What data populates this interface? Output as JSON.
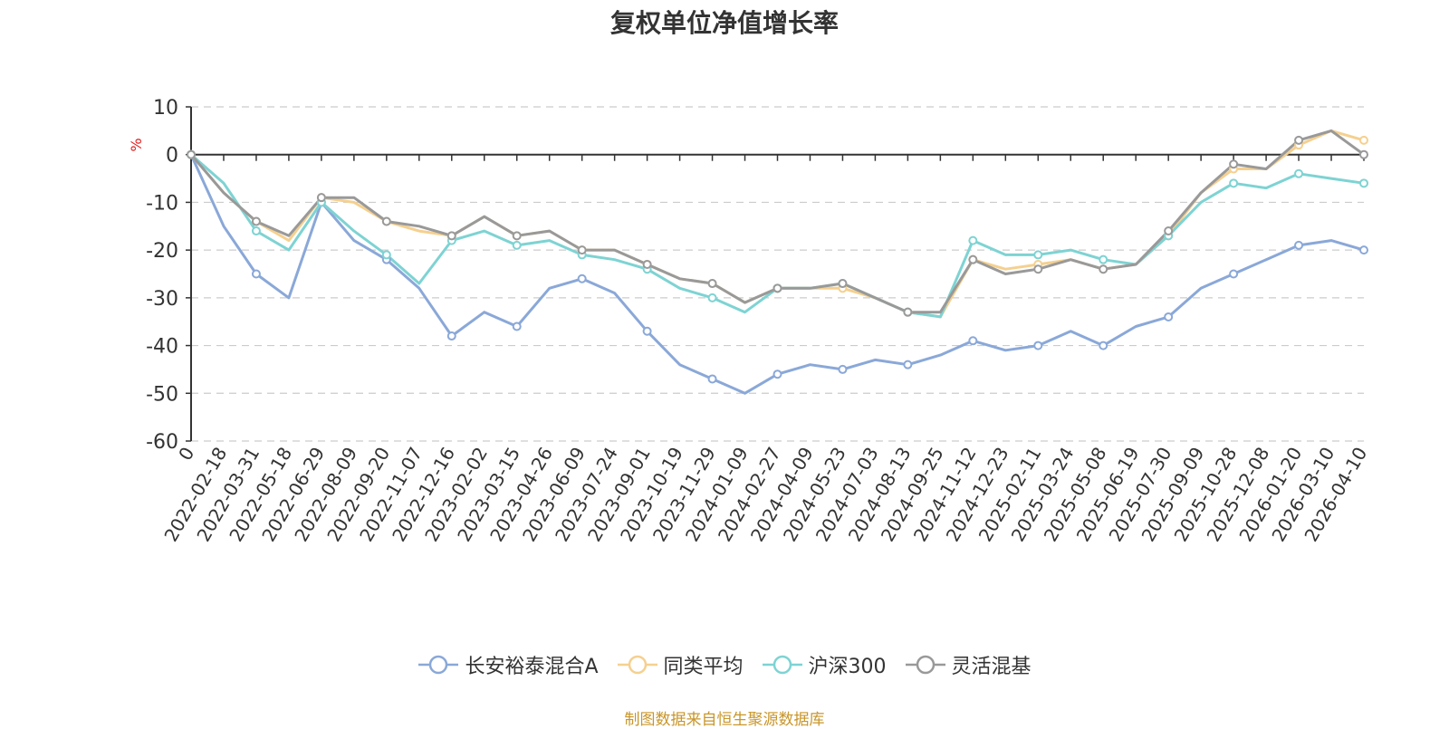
{
  "chart_data": {
    "type": "line",
    "title": "复权单位净值增长率",
    "ylabel": "%",
    "ylim": [
      -60,
      10
    ],
    "yticks": [
      "10",
      "0",
      "-10",
      "-20",
      "-30",
      "-40",
      "-50",
      "-60"
    ],
    "grid": true,
    "legend_position": "bottom-center",
    "x": [
      "0",
      "2022-02-18",
      "2022-03-31",
      "2022-05-18",
      "2022-06-29",
      "2022-08-09",
      "2022-09-20",
      "2022-11-07",
      "2022-12-16",
      "2023-02-02",
      "2023-03-15",
      "2023-04-26",
      "2023-06-09",
      "2023-07-24",
      "2023-09-01",
      "2023-10-19",
      "2023-11-29",
      "2024-01-09",
      "2024-02-27",
      "2024-04-09",
      "2024-05-23",
      "2024-07-03",
      "2024-08-13",
      "2024-09-25",
      "2024-11-12",
      "2024-12-23",
      "2025-02-11",
      "2025-03-24",
      "2025-05-08",
      "2025-06-19",
      "2025-07-30",
      "2025-09-09",
      "2025-10-28",
      "2025-12-08",
      "2026-01-20",
      "2026-03-10",
      "2026-04-10"
    ],
    "series": [
      {
        "name": "长安裕泰混合A",
        "color": "#8aa8d8",
        "values": [
          0,
          -15,
          -25,
          -30,
          -10,
          -18,
          -22,
          -28,
          -38,
          -33,
          -36,
          -28,
          -26,
          -29,
          -37,
          -44,
          -47,
          -50,
          -46,
          -44,
          -45,
          -43,
          -44,
          -42,
          -39,
          -41,
          -40,
          -37,
          -40,
          -36,
          -34,
          -28,
          -25,
          -22,
          -19,
          -18,
          -20
        ]
      },
      {
        "name": "同类平均",
        "color": "#f5d08f",
        "values": [
          0,
          -8,
          -14,
          -18,
          -9,
          -10,
          -14,
          -16,
          -17,
          -13,
          -17,
          -16,
          -20,
          -20,
          -23,
          -26,
          -27,
          -31,
          -28,
          -28,
          -28,
          -30,
          -33,
          -34,
          -22,
          -24,
          -23,
          -22,
          -24,
          -23,
          -17,
          -8,
          -3,
          -3,
          2,
          5,
          3
        ]
      },
      {
        "name": "沪深300",
        "color": "#7ed3d3",
        "values": [
          0,
          -6,
          -16,
          -20,
          -10,
          -16,
          -21,
          -27,
          -18,
          -16,
          -19,
          -18,
          -21,
          -22,
          -24,
          -28,
          -30,
          -33,
          -28,
          -28,
          -27,
          -30,
          -33,
          -34,
          -18,
          -21,
          -21,
          -20,
          -22,
          -23,
          -17,
          -10,
          -6,
          -7,
          -4,
          -5,
          -6
        ]
      },
      {
        "name": "灵活混基",
        "color": "#999999",
        "values": [
          0,
          -8,
          -14,
          -17,
          -9,
          -9,
          -14,
          -15,
          -17,
          -13,
          -17,
          -16,
          -20,
          -20,
          -23,
          -26,
          -27,
          -31,
          -28,
          -28,
          -27,
          -30,
          -33,
          -33,
          -22,
          -25,
          -24,
          -22,
          -24,
          -23,
          -16,
          -8,
          -2,
          -3,
          3,
          5,
          0
        ]
      }
    ]
  },
  "source_note": "制图数据来自恒生聚源数据库"
}
